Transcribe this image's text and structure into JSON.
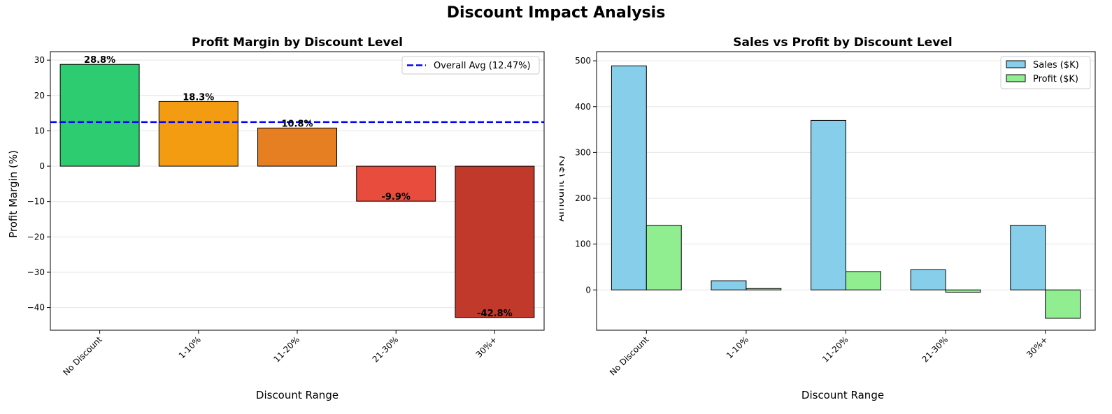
{
  "suptitle": "Discount Impact Analysis",
  "chart_data": [
    {
      "type": "bar",
      "title": "Profit Margin by Discount Level",
      "xlabel": "Discount Range",
      "ylabel": "Profit Margin (%)",
      "categories": [
        "No Discount",
        "1-10%",
        "11-20%",
        "21-30%",
        "30%+"
      ],
      "values": [
        28.8,
        18.3,
        10.8,
        -9.9,
        -42.8
      ],
      "value_labels": [
        "28.8%",
        "18.3%",
        "10.8%",
        "-9.9%",
        "-42.8%"
      ],
      "colors": [
        "#2ecc71",
        "#f39c12",
        "#e67e22",
        "#e74c3c",
        "#c0392b"
      ],
      "ylim": [
        -46.4,
        32.4
      ],
      "yticks": [
        30,
        20,
        10,
        0,
        -10,
        -20,
        -30,
        -40
      ],
      "ytick_labels": [
        "30",
        "20",
        "10",
        "0",
        "−10",
        "−20",
        "−30",
        "−40"
      ],
      "reference_line": {
        "value": 12.47,
        "label": "Overall Avg (12.47%)",
        "color": "#0000ff",
        "style": "dashed"
      },
      "legend": "top-right",
      "grid": "y"
    },
    {
      "type": "bar",
      "title": "Sales vs Profit by Discount Level",
      "xlabel": "Discount Range",
      "ylabel": "Amount ($K)",
      "categories": [
        "No Discount",
        "1-10%",
        "11-20%",
        "21-30%",
        "30%+"
      ],
      "series": [
        {
          "name": "Sales ($K)",
          "color": "#87ceeb",
          "values": [
            489,
            20,
            370,
            44,
            141
          ]
        },
        {
          "name": "Profit ($K)",
          "color": "#90ee90",
          "values": [
            141,
            3,
            40,
            -5,
            -62
          ]
        }
      ],
      "ylim": [
        -88,
        520
      ],
      "yticks": [
        500,
        400,
        300,
        200,
        100,
        0
      ],
      "ytick_labels": [
        "500",
        "400",
        "300",
        "200",
        "100",
        "0"
      ],
      "legend": "top-right",
      "grid": "y"
    }
  ]
}
